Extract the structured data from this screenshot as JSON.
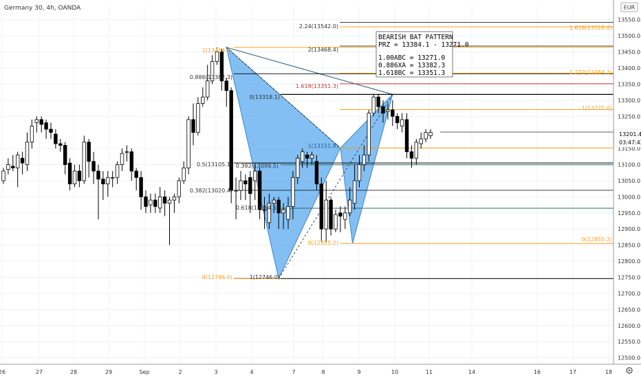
{
  "header": {
    "title": "Germany 30, 4h, OANDA",
    "currency": "EUR",
    "gear_icon": "gear-icon"
  },
  "colors": {
    "bull_fill": "#ffffff",
    "bear_fill": "#000000",
    "pattern_fill": "#5aa9ee",
    "fib_orange": "#f7a21b",
    "fib_red": "#c0392b",
    "green_line": "#2e6b5e"
  },
  "price_box": {
    "price": "13201.4",
    "countdown": "03:47:42"
  },
  "info_box": {
    "title": "BEARISH BAT PATTERN",
    "prz": "PRZ = 13384.1 - 13271.0",
    "line1": "1.00ABC = 13271.0",
    "line2": "0.886XA = 13382.3",
    "line3": "1.618BC = 13351.3"
  },
  "fib_labels": {
    "x_level": "1(13464.2)",
    "xa_0886": "0.886(13382.3)",
    "xa_05": "0.5(13105.1)",
    "xa_0382": "0.382(13020.4)",
    "a_level": "0(12746.0)",
    "a_level_1": "1(12746.0)",
    "b_0382": "0.382(13099.5)",
    "b_0618": "0.618(12964.5)",
    "b_1": "1(13151.8)",
    "c_0": "0(13318.1)",
    "c_1618": "1.618(13351.3)",
    "c_2": "2(13468.4)",
    "c_224": "2.24(13542.0)",
    "d_1618": "1.618(13528.0)",
    "d_1272": "1.272(13384.1)",
    "d_1": "1(13271.0)",
    "d_0": "0(12855.2)",
    "d_0_left": "0(12855.2)"
  },
  "chart_data": {
    "type": "candlestick",
    "title": "Germany 30, 4h, OANDA",
    "ylim": [
      12480,
      13590
    ],
    "y_ticks": [
      "13550.0",
      "13500.0",
      "13450.0",
      "13400.0",
      "13350.0",
      "13300.0",
      "13250.0",
      "13150.0",
      "13100.0",
      "13050.0",
      "13000.0",
      "12950.0",
      "12900.0",
      "12850.0",
      "12800.0",
      "12750.0",
      "12700.0",
      "12650.0",
      "12600.0",
      "12550.0",
      "12500.0"
    ],
    "x_ticks": [
      "26",
      "27",
      "28",
      "29",
      "Sep",
      "2",
      "3",
      "4",
      "7",
      "8",
      "9",
      "10",
      "11",
      "14",
      "16",
      "17",
      "18"
    ],
    "candles": [
      [
        13050,
        13080,
        13040,
        13090
      ],
      [
        13085,
        13100,
        13070,
        13120
      ],
      [
        13095,
        13090,
        13080,
        13130
      ],
      [
        13090,
        13130,
        13030,
        13140
      ],
      [
        13120,
        13105,
        13070,
        13140
      ],
      [
        13100,
        13170,
        13080,
        13200
      ],
      [
        13170,
        13220,
        13150,
        13240
      ],
      [
        13230,
        13240,
        13200,
        13250
      ],
      [
        13240,
        13225,
        13200,
        13250
      ],
      [
        13230,
        13210,
        13180,
        13240
      ],
      [
        13210,
        13200,
        13180,
        13230
      ],
      [
        13195,
        13165,
        13150,
        13210
      ],
      [
        13165,
        13160,
        13140,
        13180
      ],
      [
        13160,
        13100,
        13070,
        13170
      ],
      [
        13105,
        13040,
        13020,
        13120
      ],
      [
        13040,
        13080,
        13030,
        13100
      ],
      [
        13080,
        13050,
        13030,
        13100
      ],
      [
        13050,
        13170,
        13040,
        13190
      ],
      [
        13170,
        13110,
        13060,
        13180
      ],
      [
        13110,
        13080,
        13040,
        13140
      ],
      [
        13080,
        13055,
        12930,
        13100
      ],
      [
        13055,
        13040,
        12990,
        13080
      ],
      [
        13040,
        13060,
        13000,
        13080
      ],
      [
        13060,
        13060,
        13030,
        13080
      ],
      [
        13060,
        13100,
        13040,
        13110
      ],
      [
        13100,
        13135,
        13080,
        13150
      ],
      [
        13140,
        13140,
        13110,
        13160
      ],
      [
        13140,
        13080,
        13050,
        13150
      ],
      [
        13080,
        13060,
        13020,
        13090
      ],
      [
        13060,
        13000,
        12960,
        13080
      ],
      [
        13000,
        12970,
        12950,
        13020
      ],
      [
        12975,
        12990,
        12950,
        13010
      ],
      [
        12990,
        12970,
        12950,
        13010
      ],
      [
        12965,
        13000,
        12950,
        13030
      ],
      [
        13000,
        12980,
        12940,
        13020
      ],
      [
        12980,
        12990,
        12850,
        13000
      ],
      [
        12990,
        13000,
        12950,
        13010
      ],
      [
        13000,
        13050,
        12980,
        13060
      ],
      [
        13050,
        13090,
        13040,
        13110
      ],
      [
        13090,
        13240,
        13070,
        13250
      ],
      [
        13240,
        13200,
        13160,
        13290
      ],
      [
        13200,
        13290,
        13190,
        13310
      ],
      [
        13290,
        13310,
        13280,
        13340
      ],
      [
        13310,
        13360,
        13300,
        13410
      ],
      [
        13360,
        13420,
        13350,
        13440
      ],
      [
        13420,
        13450,
        13410,
        13464
      ],
      [
        13450,
        13360,
        13330,
        13460
      ],
      [
        13360,
        13330,
        13280,
        13370
      ],
      [
        13330,
        13020,
        12980,
        13340
      ],
      [
        13020,
        13020,
        12930,
        13060
      ],
      [
        13020,
        13050,
        12990,
        13080
      ],
      [
        13050,
        13040,
        12990,
        13070
      ],
      [
        13060,
        13010,
        12950,
        13080
      ],
      [
        13050,
        13080,
        12990,
        13100
      ],
      [
        13080,
        12960,
        12930,
        13090
      ],
      [
        12960,
        12960,
        12900,
        13000
      ],
      [
        12920,
        12980,
        12900,
        13010
      ],
      [
        12980,
        12990,
        12950,
        13000
      ],
      [
        12990,
        12950,
        12900,
        13000
      ],
      [
        12950,
        12960,
        12900,
        12980
      ],
      [
        12930,
        12970,
        12900,
        13000
      ],
      [
        12970,
        13060,
        12930,
        13080
      ],
      [
        13060,
        13120,
        13040,
        13130
      ],
      [
        13110,
        13140,
        13090,
        13150
      ],
      [
        13130,
        13120,
        13090,
        13140
      ],
      [
        13120,
        13130,
        13100,
        13140
      ],
      [
        13110,
        13040,
        13020,
        13130
      ],
      [
        13040,
        12900,
        12860,
        13060
      ],
      [
        12900,
        12990,
        12860,
        13050
      ],
      [
        12990,
        12900,
        12880,
        13000
      ],
      [
        12900,
        12945,
        12890,
        12960
      ],
      [
        12950,
        12940,
        12890,
        12970
      ],
      [
        12930,
        12950,
        12900,
        12970
      ],
      [
        12950,
        12990,
        12940,
        13030
      ],
      [
        12980,
        13050,
        12960,
        13100
      ],
      [
        13050,
        13100,
        13030,
        13130
      ],
      [
        13100,
        13130,
        13080,
        13160
      ],
      [
        13130,
        13260,
        13110,
        13270
      ],
      [
        13260,
        13310,
        13250,
        13320
      ],
      [
        13310,
        13280,
        13260,
        13320
      ],
      [
        13280,
        13260,
        13230,
        13300
      ],
      [
        13265,
        13270,
        13240,
        13290
      ],
      [
        13270,
        13250,
        13220,
        13300
      ],
      [
        13250,
        13230,
        13210,
        13260
      ],
      [
        13220,
        13240,
        13200,
        13260
      ],
      [
        13240,
        13140,
        13120,
        13260
      ],
      [
        13140,
        13120,
        13090,
        13160
      ],
      [
        13120,
        13170,
        13100,
        13180
      ],
      [
        13165,
        13180,
        13150,
        13200
      ],
      [
        13180,
        13200,
        13170,
        13210
      ],
      [
        13190,
        13200,
        13180,
        13210
      ]
    ],
    "pattern": {
      "X": 13464.2,
      "A": 12746.0,
      "B": 13151.8,
      "C": 12855.2,
      "D": 13318.1
    },
    "levels": [
      13542.0,
      13468.4,
      13464.2,
      13382.3,
      13351.3,
      13318.1,
      13271.0,
      13151.8,
      13105.1,
      13099.5,
      13020.4,
      12964.5,
      12855.2,
      12746.0
    ],
    "current_price": 13201.4
  }
}
